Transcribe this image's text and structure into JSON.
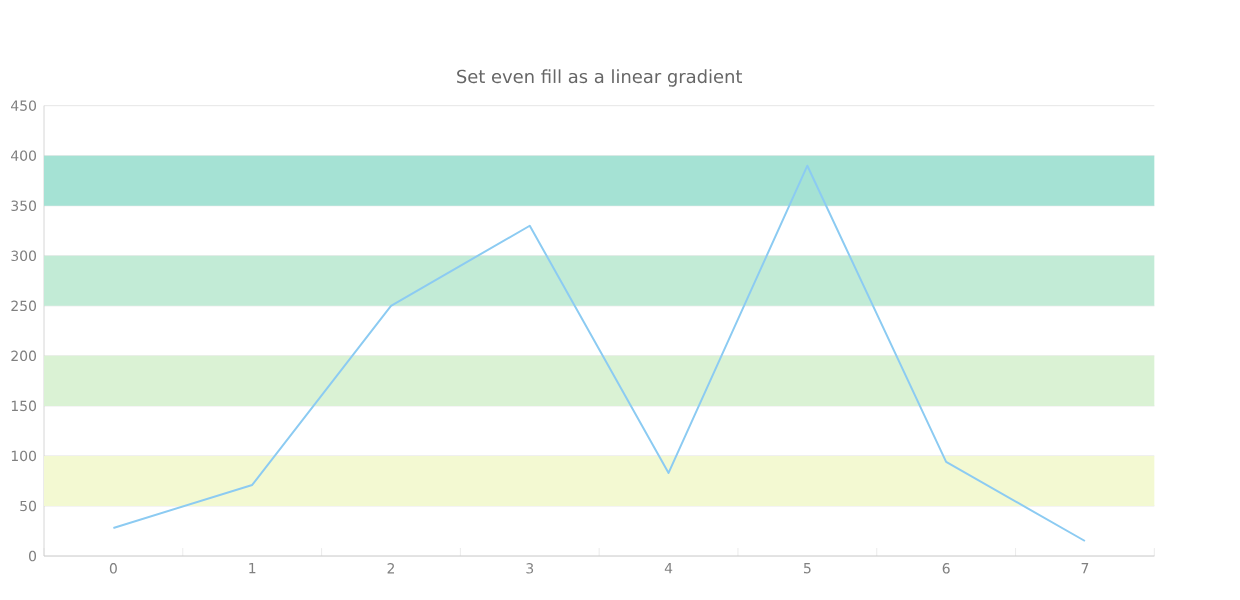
{
  "chart_data": {
    "type": "line",
    "title": "Set even fill as a linear gradient",
    "categories": [
      "0",
      "1",
      "2",
      "3",
      "4",
      "5",
      "6",
      "7"
    ],
    "series": [
      {
        "color": "#8ccbf2",
        "values": [
          28,
          71,
          250,
          330,
          83,
          390,
          94,
          15
        ]
      }
    ],
    "ylim": [
      0,
      450
    ],
    "yticks": [
      0,
      50,
      100,
      150,
      200,
      250,
      300,
      350,
      400,
      450
    ],
    "grid": "y",
    "marker": "none",
    "bands": [
      {
        "axis": "y",
        "from": 50,
        "to": 100,
        "color": "#f3f9d2"
      },
      {
        "axis": "y",
        "from": 150,
        "to": 200,
        "color": "#daf2d4"
      },
      {
        "axis": "y",
        "from": 250,
        "to": 300,
        "color": "#c2ebd6"
      },
      {
        "axis": "y",
        "from": 350,
        "to": 400,
        "color": "#a5e2d4"
      }
    ]
  }
}
